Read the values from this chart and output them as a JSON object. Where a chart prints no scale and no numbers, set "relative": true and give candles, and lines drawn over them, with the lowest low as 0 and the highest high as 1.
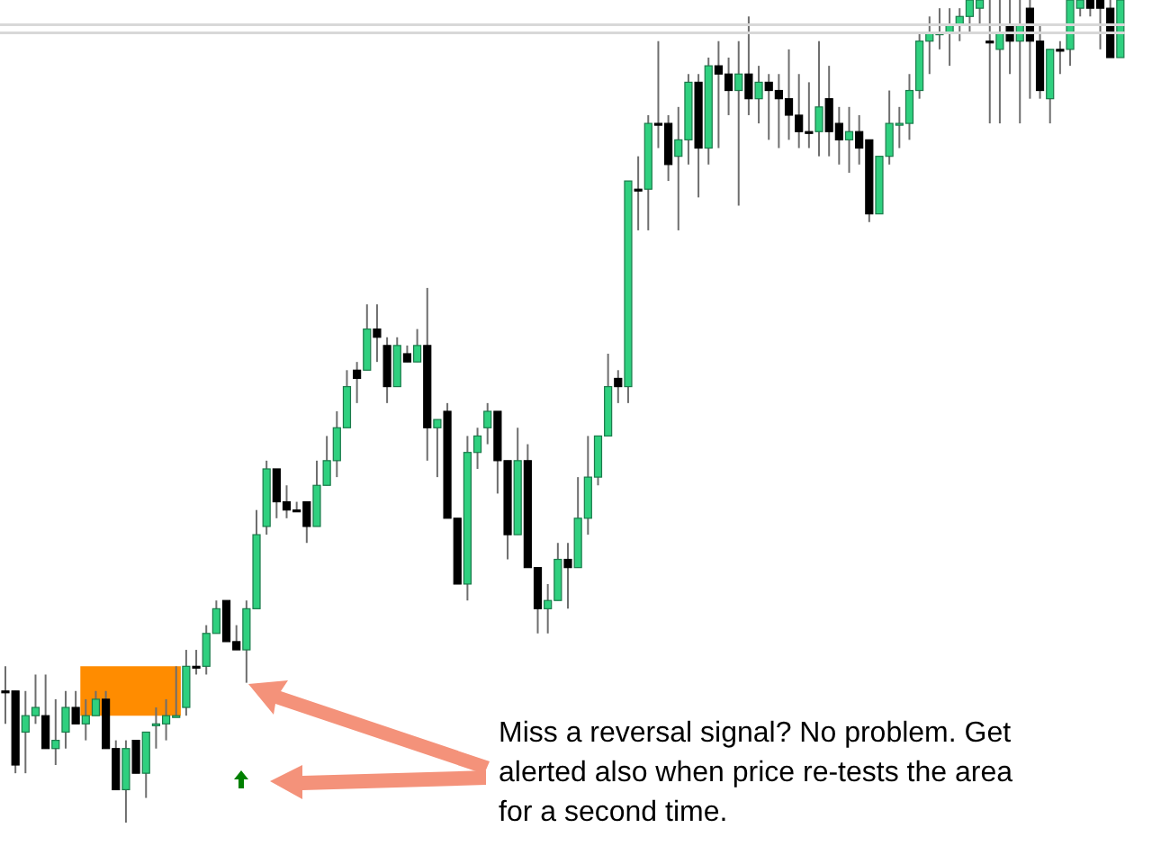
{
  "chart_data": {
    "type": "candlestick",
    "relative": true,
    "colors": [
      "#000000",
      "#000000",
      "#2fd07f",
      "#2fd07f",
      "#000000",
      "#2fd07f",
      "#2fd07f",
      "#000000",
      "#2fd07f",
      "#2fd07f",
      "#000000",
      "#000000",
      "#2fd07f",
      "#000000",
      "#2fd07f",
      "#2fd07f",
      "#2fd07f",
      "#2fd07f",
      "#2fd07f",
      "#000000",
      "#2fd07f",
      "#2fd07f",
      "#000000",
      "#000000",
      "#2fd07f",
      "#2fd07f",
      "#2fd07f",
      "#000000",
      "#000000",
      "#000000",
      "#000000",
      "#2fd07f",
      "#2fd07f",
      "#2fd07f",
      "#2fd07f",
      "#000000",
      "#2fd07f",
      "#000000",
      "#000000",
      "#2fd07f",
      "#000000",
      "#2fd07f",
      "#000000",
      "#2fd07f",
      "#000000",
      "#000000",
      "#2fd07f",
      "#2fd07f",
      "#2fd07f",
      "#000000",
      "#000000",
      "#2fd07f",
      "#000000",
      "#000000",
      "#2fd07f",
      "#2fd07f",
      "#000000",
      "#2fd07f",
      "#2fd07f",
      "#2fd07f",
      "#2fd07f",
      "#000000",
      "#2fd07f",
      "#000000",
      "#2fd07f",
      "#000000",
      "#000000",
      "#2fd07f",
      "#2fd07f",
      "#000000",
      "#2fd07f",
      "#000000",
      "#000000",
      "#2fd07f",
      "#000000",
      "#2fd07f",
      "#000000",
      "#000000",
      "#000000",
      "#000000",
      "#000000",
      "#2fd07f",
      "#000000",
      "#000000",
      "#2fd07f",
      "#000000",
      "#000000",
      "#2fd07f",
      "#2fd07f",
      "#2fd07f",
      "#2fd07f",
      "#2fd07f",
      "#2fd07f",
      "#2fd07f",
      "#2fd07f",
      "#2fd07f",
      "#2fd07f",
      "#2fd07f",
      "#000000",
      "#2fd07f",
      "#000000",
      "#2fd07f",
      "#000000",
      "#000000",
      "#2fd07f",
      "#000000",
      "#2fd07f",
      "#2fd07f",
      "#000000",
      "#000000",
      "#000000",
      "#2fd07f"
    ],
    "categories": [
      null,
      null,
      null,
      null,
      null,
      null,
      null,
      null,
      null,
      null,
      null,
      null,
      null,
      null,
      null,
      null,
      null,
      null,
      null,
      null,
      null,
      null,
      null,
      null,
      null,
      null,
      null,
      null,
      null,
      null,
      null,
      null,
      null,
      null,
      null,
      null,
      null,
      null,
      null,
      null,
      null,
      null,
      null,
      null,
      null,
      null,
      null,
      null,
      null,
      null,
      null,
      null,
      null,
      null,
      null,
      null,
      null,
      null,
      null,
      null,
      null,
      null,
      null,
      null,
      null,
      null,
      null,
      null,
      null,
      null,
      null,
      null,
      null,
      null,
      null,
      null,
      null,
      null,
      null,
      null,
      null,
      null,
      null,
      null,
      null,
      null,
      null,
      null,
      null,
      null,
      null,
      null,
      null,
      null,
      null,
      null,
      null,
      null,
      null,
      null,
      null,
      null,
      null,
      null,
      null,
      null,
      null,
      null,
      null,
      null,
      null,
      null
    ],
    "ohlc": [
      [
        0.16,
        0.19,
        0.12,
        0.16
      ],
      [
        0.16,
        0.16,
        0.06,
        0.07
      ],
      [
        0.11,
        0.16,
        0.06,
        0.13
      ],
      [
        0.13,
        0.18,
        0.12,
        0.14
      ],
      [
        0.13,
        0.18,
        0.09,
        0.09
      ],
      [
        0.09,
        0.15,
        0.07,
        0.1
      ],
      [
        0.11,
        0.16,
        0.09,
        0.14
      ],
      [
        0.14,
        0.16,
        0.12,
        0.12
      ],
      [
        0.12,
        0.15,
        0.1,
        0.13
      ],
      [
        0.13,
        0.16,
        0.13,
        0.15
      ],
      [
        0.15,
        0.16,
        0.09,
        0.09
      ],
      [
        0.09,
        0.1,
        0.04,
        0.04
      ],
      [
        0.04,
        0.1,
        0,
        0.09
      ],
      [
        0.1,
        0.1,
        0.06,
        0.06
      ],
      [
        0.06,
        0.11,
        0.03,
        0.11
      ],
      [
        0.12,
        0.14,
        0.09,
        0.12
      ],
      [
        0.12,
        0.15,
        0.1,
        0.13
      ],
      [
        0.13,
        0.19,
        0.13,
        0.13
      ],
      [
        0.14,
        0.21,
        0.13,
        0.19
      ],
      [
        0.19,
        0.21,
        0.18,
        0.19
      ],
      [
        0.19,
        0.24,
        0.18,
        0.23
      ],
      [
        0.23,
        0.27,
        0.23,
        0.26
      ],
      [
        0.27,
        0.27,
        0.22,
        0.22
      ],
      [
        0.22,
        0.24,
        0.21,
        0.21
      ],
      [
        0.21,
        0.27,
        0.17,
        0.26
      ],
      [
        0.26,
        0.38,
        0.26,
        0.35
      ],
      [
        0.36,
        0.44,
        0.35,
        0.43
      ],
      [
        0.43,
        0.43,
        0.37,
        0.39
      ],
      [
        0.39,
        0.41,
        0.37,
        0.38
      ],
      [
        0.38,
        0.39,
        0.38,
        0.38
      ],
      [
        0.39,
        0.39,
        0.34,
        0.36
      ],
      [
        0.36,
        0.44,
        0.36,
        0.41
      ],
      [
        0.41,
        0.47,
        0.41,
        0.44
      ],
      [
        0.44,
        0.5,
        0.42,
        0.48
      ],
      [
        0.48,
        0.55,
        0.48,
        0.53
      ],
      [
        0.55,
        0.56,
        0.51,
        0.54
      ],
      [
        0.55,
        0.63,
        0.55,
        0.6
      ],
      [
        0.6,
        0.63,
        0.56,
        0.59
      ],
      [
        0.58,
        0.59,
        0.51,
        0.53
      ],
      [
        0.53,
        0.59,
        0.53,
        0.58
      ],
      [
        0.57,
        0.58,
        0.56,
        0.56
      ],
      [
        0.56,
        0.6,
        0.56,
        0.58
      ],
      [
        0.58,
        0.65,
        0.44,
        0.48
      ],
      [
        0.48,
        0.49,
        0.42,
        0.49
      ],
      [
        0.5,
        0.51,
        0.37,
        0.37
      ],
      [
        0.37,
        0.37,
        0.29,
        0.29
      ],
      [
        0.29,
        0.47,
        0.27,
        0.45
      ],
      [
        0.45,
        0.48,
        0.43,
        0.47
      ],
      [
        0.48,
        0.51,
        0.46,
        0.5
      ],
      [
        0.5,
        0.5,
        0.4,
        0.44
      ],
      [
        0.44,
        0.44,
        0.32,
        0.35
      ],
      [
        0.35,
        0.48,
        0.35,
        0.44
      ],
      [
        0.44,
        0.46,
        0.31,
        0.31
      ],
      [
        0.31,
        0.31,
        0.23,
        0.26
      ],
      [
        0.26,
        0.29,
        0.23,
        0.27
      ],
      [
        0.27,
        0.34,
        0.27,
        0.32
      ],
      [
        0.32,
        0.34,
        0.26,
        0.31
      ],
      [
        0.31,
        0.42,
        0.31,
        0.37
      ],
      [
        0.37,
        0.47,
        0.35,
        0.42
      ],
      [
        0.42,
        0.47,
        0.41,
        0.47
      ],
      [
        0.47,
        0.57,
        0.47,
        0.53
      ],
      [
        0.54,
        0.55,
        0.51,
        0.53
      ],
      [
        0.53,
        0.78,
        0.51,
        0.78
      ],
      [
        0.77,
        0.81,
        0.72,
        0.77
      ],
      [
        0.77,
        0.86,
        0.72,
        0.85
      ],
      [
        0.85,
        0.95,
        0.82,
        0.85
      ],
      [
        0.85,
        0.86,
        0.78,
        0.8
      ],
      [
        0.81,
        0.87,
        0.72,
        0.83
      ],
      [
        0.83,
        0.91,
        0.8,
        0.9
      ],
      [
        0.9,
        0.91,
        0.76,
        0.82
      ],
      [
        0.82,
        0.93,
        0.8,
        0.92
      ],
      [
        0.92,
        0.95,
        0.82,
        0.91
      ],
      [
        0.91,
        0.93,
        0.86,
        0.89
      ],
      [
        0.89,
        0.95,
        0.75,
        0.91
      ],
      [
        0.91,
        0.98,
        0.86,
        0.88
      ],
      [
        0.88,
        0.92,
        0.85,
        0.9
      ],
      [
        0.9,
        0.91,
        0.83,
        0.89
      ],
      [
        0.89,
        0.91,
        0.82,
        0.88
      ],
      [
        0.88,
        0.94,
        0.83,
        0.86
      ],
      [
        0.86,
        0.91,
        0.82,
        0.84
      ],
      [
        0.84,
        0.9,
        0.82,
        0.84
      ],
      [
        0.84,
        0.95,
        0.81,
        0.87
      ],
      [
        0.88,
        0.92,
        0.81,
        0.84
      ],
      [
        0.85,
        0.87,
        0.8,
        0.83
      ],
      [
        0.83,
        0.87,
        0.79,
        0.84
      ],
      [
        0.84,
        0.86,
        0.8,
        0.82
      ],
      [
        0.83,
        0.83,
        0.73,
        0.74
      ],
      [
        0.74,
        0.81,
        0.74,
        0.81
      ],
      [
        0.81,
        0.89,
        0.8,
        0.85
      ],
      [
        0.85,
        0.87,
        0.82,
        0.85
      ],
      [
        0.85,
        0.91,
        0.83,
        0.89
      ],
      [
        0.89,
        0.96,
        0.88,
        0.95
      ],
      [
        0.95,
        0.98,
        0.91,
        0.96
      ],
      [
        0.96,
        0.99,
        0.94,
        0.96
      ],
      [
        0.96,
        0.99,
        0.92,
        0.97
      ],
      [
        0.97,
        0.99,
        0.95,
        0.98
      ],
      [
        0.98,
        1,
        0.96,
        1
      ],
      [
        0.99,
        1,
        0.97,
        1
      ],
      [
        0.95,
        1,
        0.85,
        0.95
      ],
      [
        0.94,
        1,
        0.85,
        0.96
      ],
      [
        0.97,
        1,
        0.91,
        0.95
      ],
      [
        0.95,
        1,
        0.85,
        0.97
      ],
      [
        0.99,
        1,
        0.88,
        0.95
      ],
      [
        0.95,
        0.97,
        0.88,
        0.89
      ],
      [
        0.88,
        0.94,
        0.85,
        0.94
      ],
      [
        0.94,
        0.95,
        0.91,
        0.94
      ],
      [
        0.94,
        1,
        0.92,
        1
      ],
      [
        0.99,
        1,
        0.98,
        1
      ],
      [
        1,
        1,
        0.98,
        0.99
      ],
      [
        1,
        1,
        0.94,
        0.99
      ],
      [
        0.99,
        1,
        0.93,
        0.93
      ],
      [
        0.93,
        1,
        0.93,
        1
      ]
    ],
    "ref_lines": [
      {
        "axis": "y",
        "value": 0.97,
        "color": "#d8d8d8"
      },
      {
        "axis": "y",
        "value": 0.96,
        "color": "#d8d8d8"
      }
    ],
    "bands": [
      {
        "axis": "y",
        "from": 0.13,
        "to": 0.19,
        "color": "#ff8c00"
      }
    ],
    "annotations": [
      "Miss a reversal signal? No problem. Get alerted also when price re-tests the area for a second time."
    ]
  }
}
